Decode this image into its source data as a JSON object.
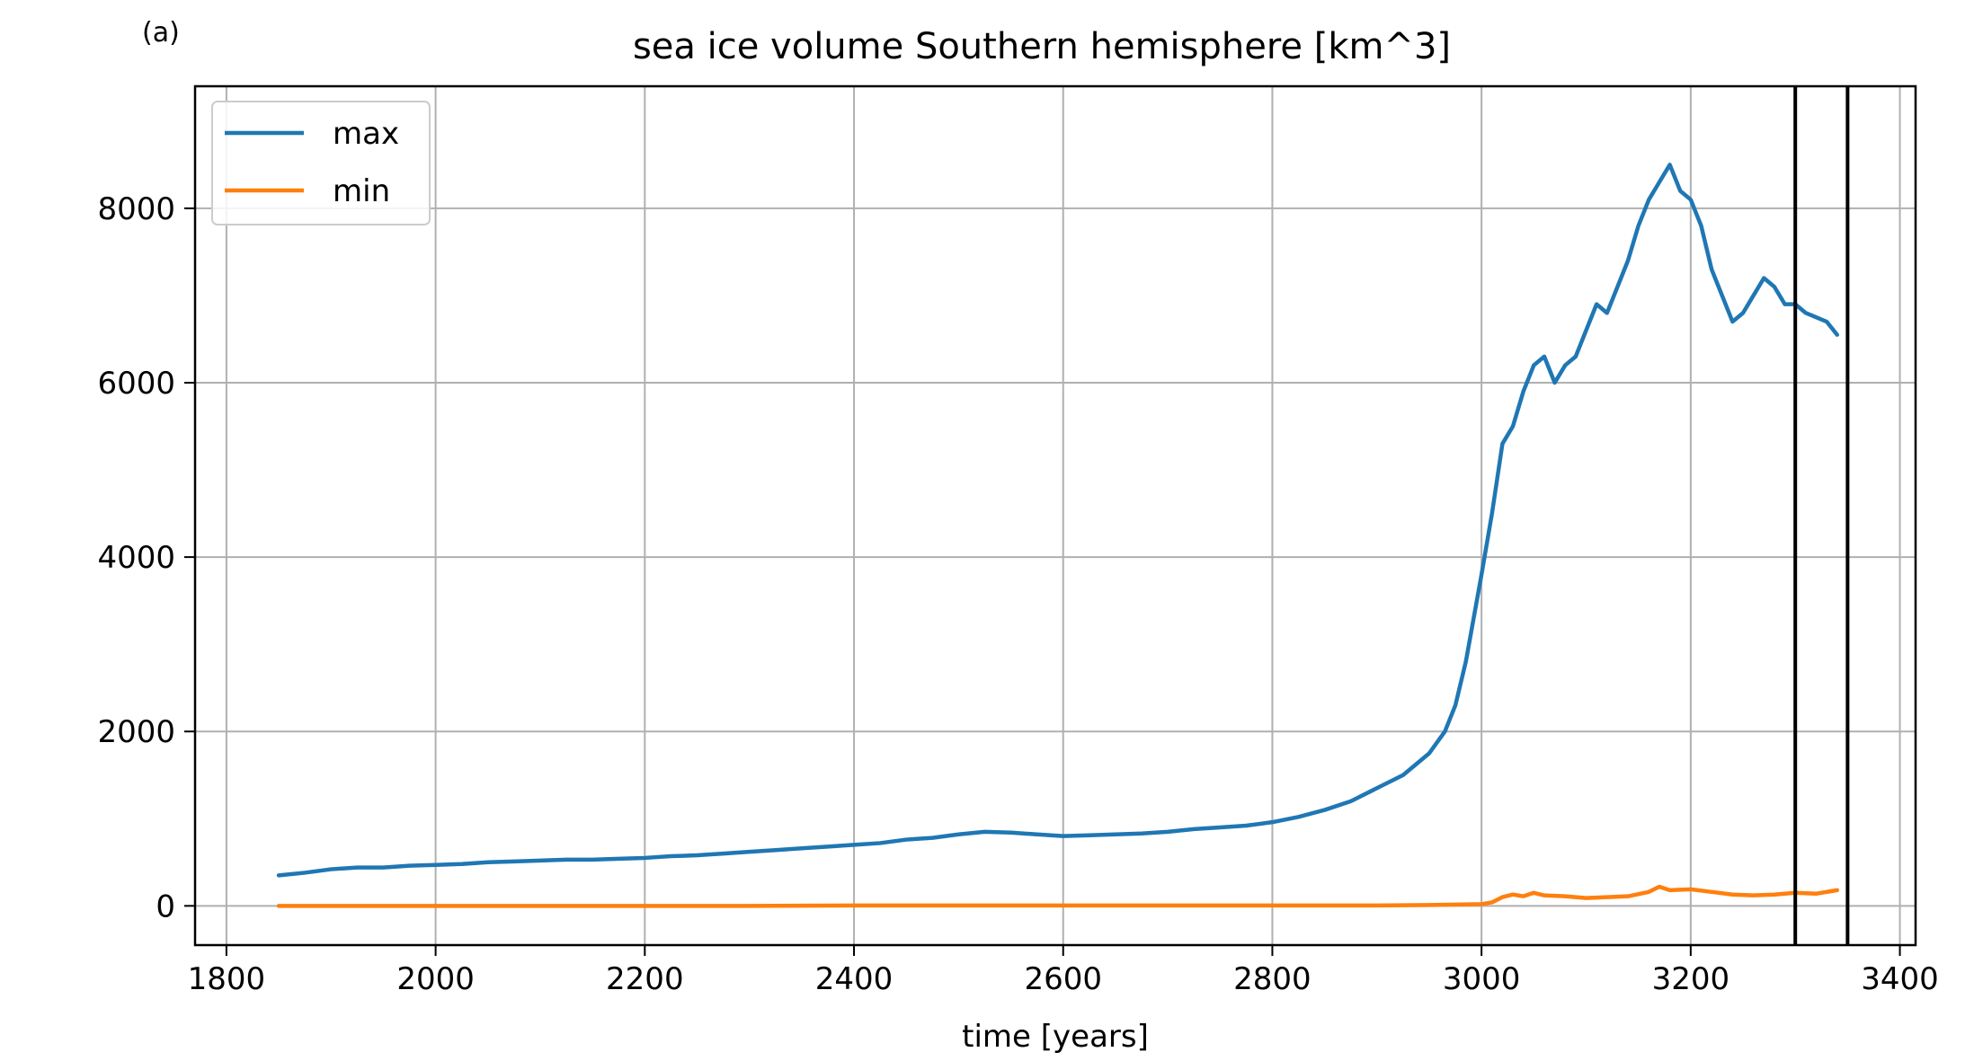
{
  "panel_label": "(a)",
  "chart_data": {
    "type": "line",
    "title": "sea ice volume Southern hemisphere [km^3]",
    "xlabel": "time [years]",
    "ylabel": "",
    "xlim": [
      1770,
      3415
    ],
    "ylim": [
      -450,
      9400
    ],
    "xticks": [
      1800,
      2000,
      2200,
      2400,
      2600,
      2800,
      3000,
      3200,
      3400
    ],
    "yticks": [
      0,
      2000,
      4000,
      6000,
      8000
    ],
    "xtick_labels": [
      "1800",
      "2000",
      "2200",
      "2400",
      "2600",
      "2800",
      "3000",
      "3200",
      "3400"
    ],
    "ytick_labels": [
      "0",
      "2000",
      "4000",
      "6000",
      "8000"
    ],
    "grid": true,
    "legend_position": "upper-left",
    "vertical_lines": [
      3300,
      3350
    ],
    "series": [
      {
        "name": "max",
        "color": "#1f77b4",
        "x": [
          1850,
          1875,
          1900,
          1925,
          1950,
          1975,
          2000,
          2025,
          2050,
          2075,
          2100,
          2125,
          2150,
          2175,
          2200,
          2225,
          2250,
          2275,
          2300,
          2325,
          2350,
          2375,
          2400,
          2425,
          2450,
          2475,
          2500,
          2525,
          2550,
          2575,
          2600,
          2625,
          2650,
          2675,
          2700,
          2725,
          2750,
          2775,
          2800,
          2825,
          2850,
          2875,
          2900,
          2925,
          2950,
          2965,
          2975,
          2985,
          3000,
          3010,
          3020,
          3030,
          3040,
          3050,
          3060,
          3070,
          3080,
          3090,
          3100,
          3110,
          3120,
          3130,
          3140,
          3150,
          3160,
          3170,
          3180,
          3190,
          3200,
          3210,
          3220,
          3230,
          3240,
          3250,
          3260,
          3270,
          3280,
          3290,
          3300,
          3310,
          3320,
          3330,
          3340
        ],
        "y": [
          350,
          380,
          420,
          440,
          440,
          460,
          470,
          480,
          500,
          510,
          520,
          530,
          530,
          540,
          550,
          570,
          580,
          600,
          620,
          640,
          660,
          680,
          700,
          720,
          760,
          780,
          820,
          850,
          840,
          820,
          800,
          810,
          820,
          830,
          850,
          880,
          900,
          920,
          960,
          1020,
          1100,
          1200,
          1350,
          1500,
          1750,
          2000,
          2300,
          2800,
          3800,
          4500,
          5300,
          5500,
          5900,
          6200,
          6300,
          6000,
          6200,
          6300,
          6600,
          6900,
          6800,
          7100,
          7400,
          7800,
          8100,
          8300,
          8500,
          8200,
          8100,
          7800,
          7300,
          7000,
          6700,
          6800,
          7000,
          7200,
          7100,
          6900,
          6900,
          6800,
          6750,
          6700,
          6550
        ]
      },
      {
        "name": "min",
        "color": "#ff7f0e",
        "x": [
          1850,
          1900,
          1950,
          2000,
          2100,
          2200,
          2300,
          2400,
          2500,
          2600,
          2700,
          2800,
          2900,
          2950,
          3000,
          3010,
          3020,
          3030,
          3040,
          3050,
          3060,
          3080,
          3100,
          3120,
          3140,
          3160,
          3170,
          3180,
          3200,
          3220,
          3240,
          3260,
          3280,
          3300,
          3320,
          3340
        ],
        "y": [
          0,
          0,
          0,
          0,
          0,
          0,
          0,
          5,
          5,
          5,
          5,
          5,
          5,
          10,
          20,
          40,
          100,
          130,
          110,
          150,
          120,
          110,
          90,
          100,
          110,
          160,
          220,
          180,
          190,
          160,
          130,
          120,
          130,
          150,
          140,
          180
        ]
      }
    ]
  }
}
